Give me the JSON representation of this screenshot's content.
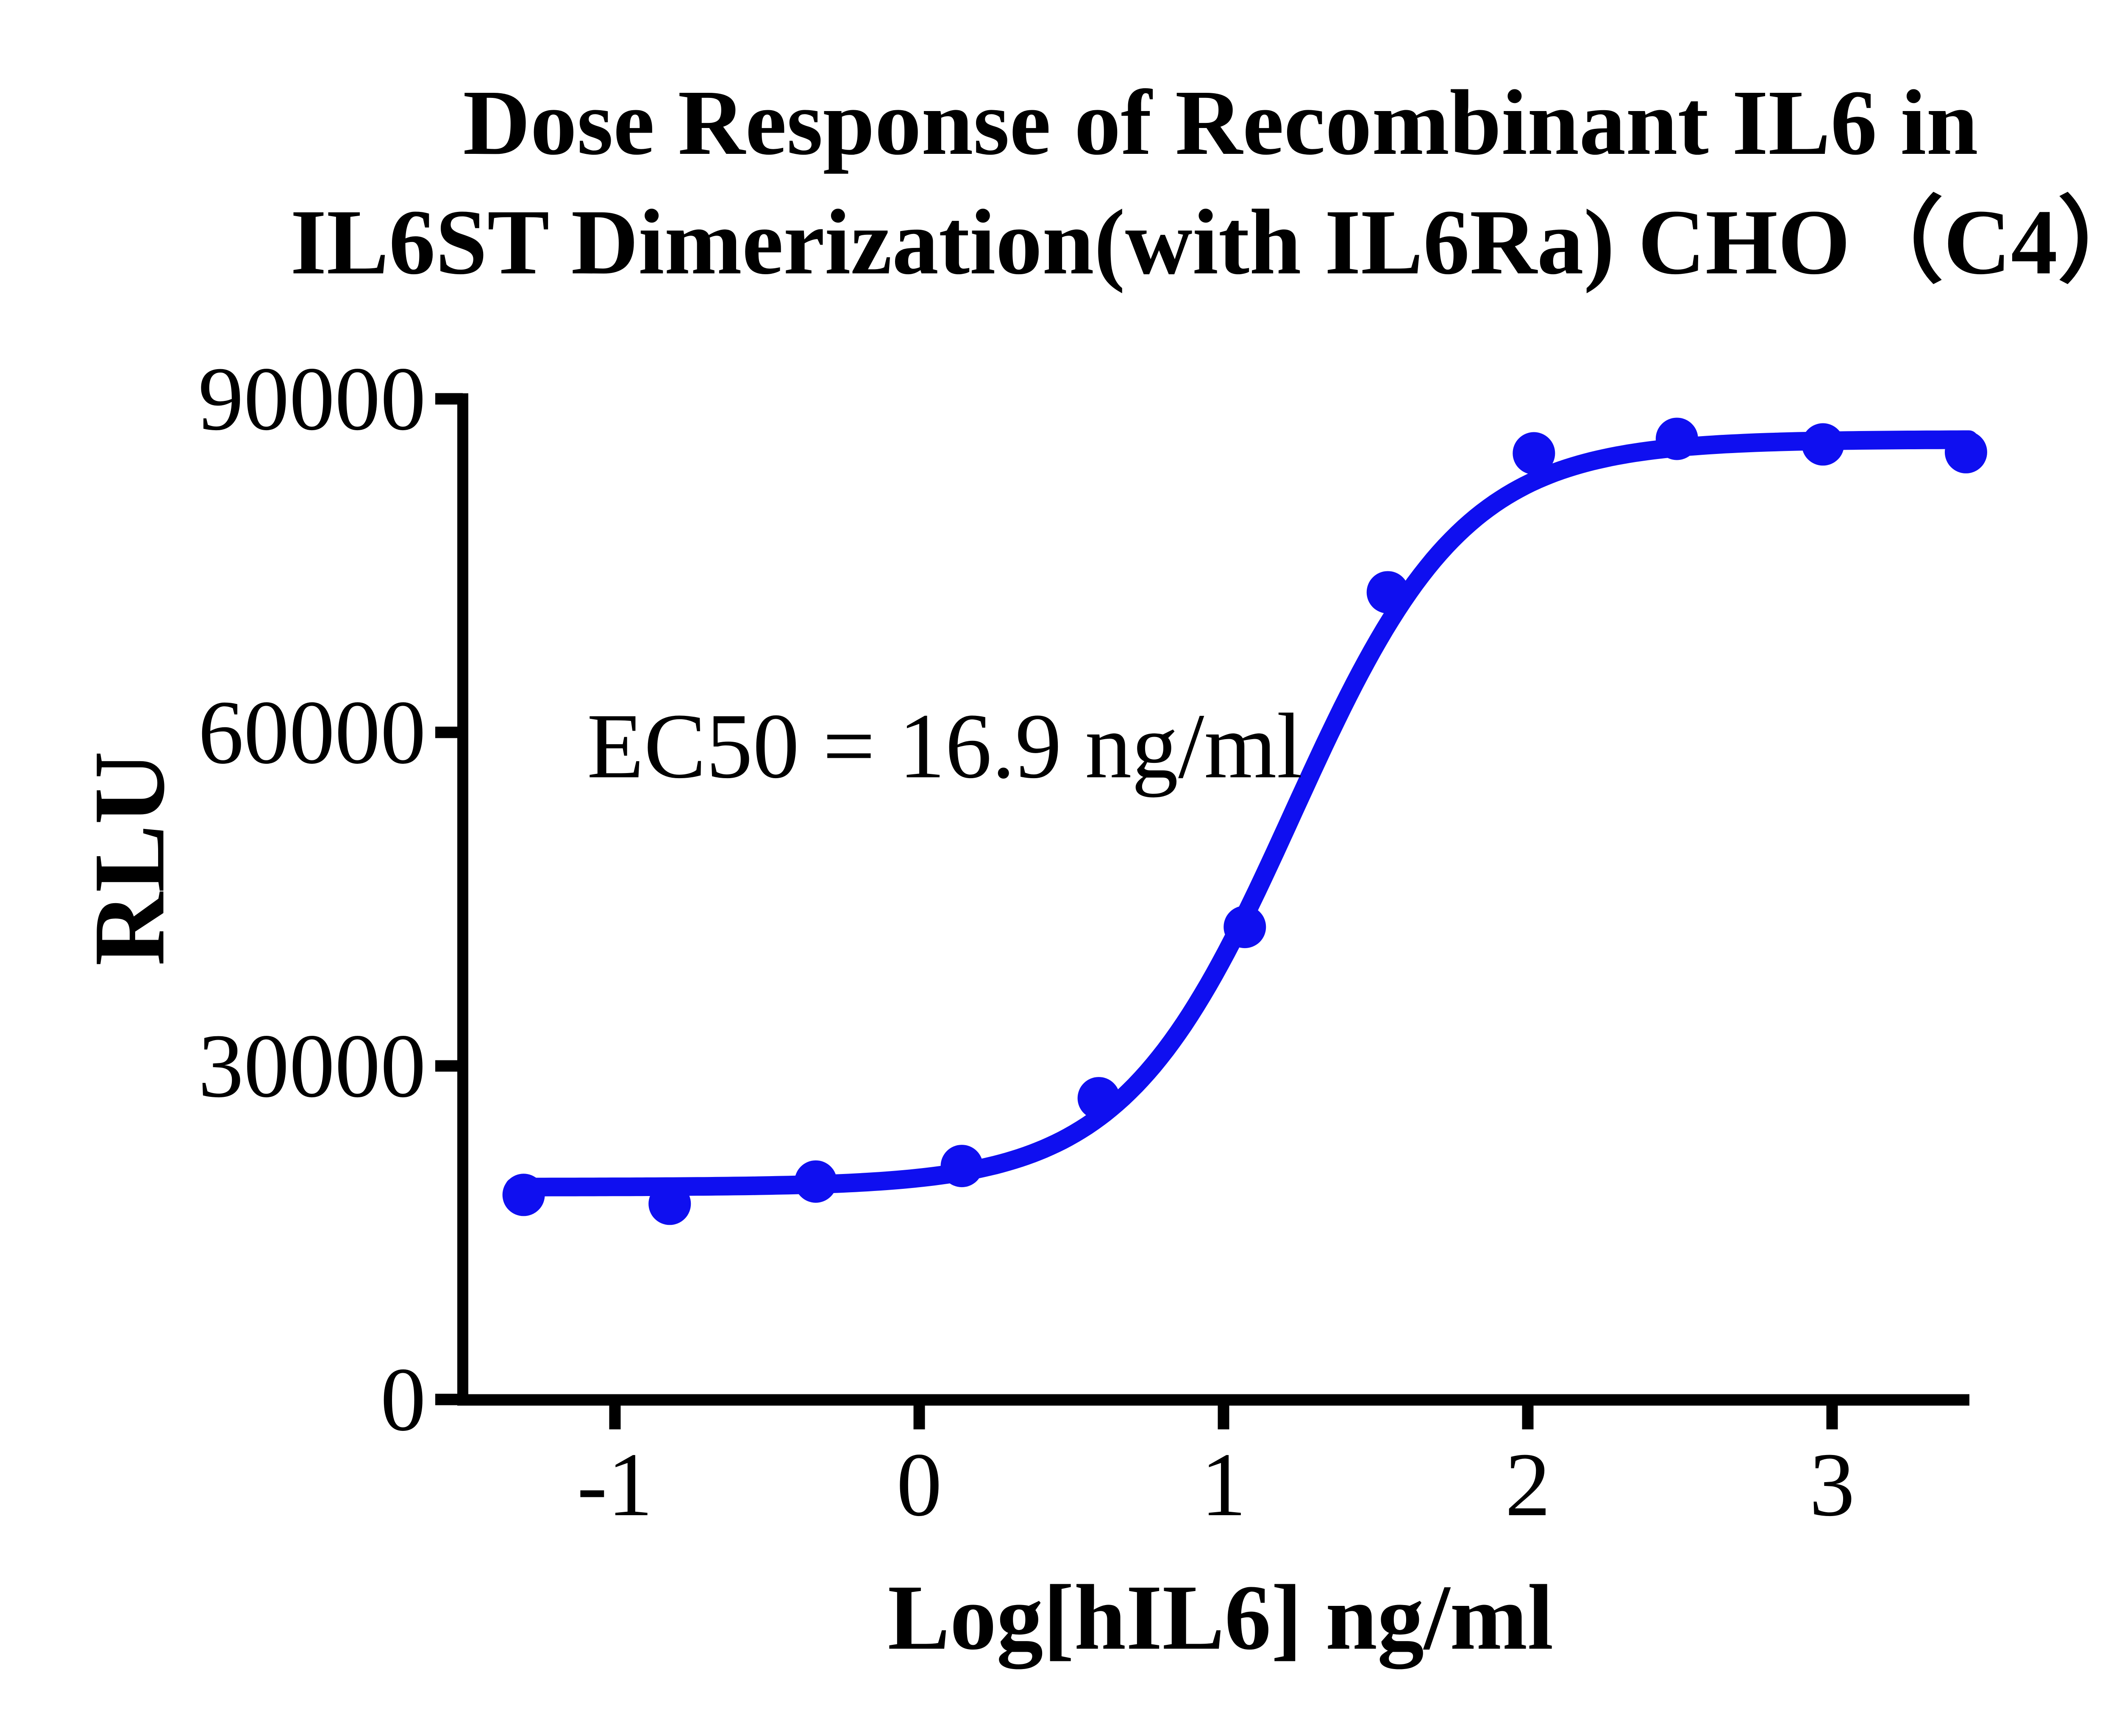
{
  "figure": {
    "title_line1": "Dose Response of Recombinant IL6 in",
    "title_line2": "IL6ST Dimerization(with IL6Ra) CHO（C4）"
  },
  "axes": {
    "y_label": "RLU",
    "x_label": "Log[hIL6] ng/ml"
  },
  "annotation": {
    "ec50": "EC50 = 16.9 ng/ml"
  },
  "chart_data": {
    "type": "scatter",
    "title": "Dose Response of Recombinant IL6 in IL6ST Dimerization(with IL6Ra) CHO（C4）",
    "xlabel": "Log[hIL6] ng/ml",
    "ylabel": "RLU",
    "xlim": [
      -1.55,
      3.55
    ],
    "ylim": [
      0,
      90000
    ],
    "x_ticks": [
      -1,
      0,
      1,
      2,
      3
    ],
    "x_tick_labels": [
      "-1",
      "0",
      "1",
      "2",
      "3"
    ],
    "y_ticks": [
      0,
      30000,
      60000,
      90000
    ],
    "y_tick_labels": [
      "0",
      "30000",
      "60000",
      "90000"
    ],
    "grid": false,
    "legend": "none",
    "series": [
      {
        "name": "hIL6",
        "x": [
          -1.3,
          -0.82,
          -0.34,
          0.14,
          0.59,
          1.07,
          1.54,
          2.02,
          2.49,
          2.97,
          3.44
        ],
        "y": [
          18400,
          17600,
          19600,
          21000,
          27100,
          42500,
          72600,
          85100,
          86400,
          85900,
          85200
        ]
      }
    ],
    "fit_curve": {
      "model": "4PL",
      "bottom": 19100,
      "top": 86350,
      "log_ec50": 1.228,
      "hill_slope": 1.55,
      "ec50_ng_ml": 16.9,
      "x_range": [
        -1.33,
        3.45
      ]
    },
    "colors": {
      "curve": "#0F0FF0",
      "marker": "#0F0FF0",
      "axis": "#000000",
      "text": "#000000",
      "background": "#FFFFFF"
    }
  }
}
